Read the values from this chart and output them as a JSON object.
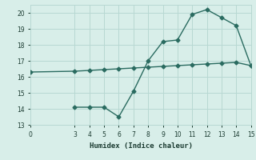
{
  "line1_x": [
    0,
    3,
    4,
    5,
    6,
    7,
    8,
    9,
    10,
    11,
    12,
    13,
    14,
    15
  ],
  "line1_y": [
    16.3,
    16.35,
    16.4,
    16.45,
    16.5,
    16.55,
    16.6,
    16.65,
    16.7,
    16.75,
    16.8,
    16.85,
    16.9,
    16.7
  ],
  "line2_x": [
    3,
    4,
    5,
    6,
    7,
    8,
    9,
    10,
    11,
    12,
    13,
    14,
    15
  ],
  "line2_y": [
    14.1,
    14.1,
    14.1,
    13.5,
    15.1,
    17.0,
    18.2,
    18.3,
    19.9,
    20.2,
    19.7,
    19.2,
    16.7
  ],
  "line_color": "#2a6b60",
  "bg_color": "#d8eee9",
  "grid_color": "#b8d8d2",
  "xlabel": "Humidex (Indice chaleur)",
  "xlim": [
    0,
    15
  ],
  "ylim": [
    13,
    20.5
  ],
  "yticks": [
    13,
    14,
    15,
    16,
    17,
    18,
    19,
    20
  ],
  "xticks": [
    0,
    3,
    4,
    5,
    6,
    7,
    8,
    9,
    10,
    11,
    12,
    13,
    14,
    15
  ],
  "marker": "D",
  "markersize": 2.5,
  "linewidth": 1.0
}
